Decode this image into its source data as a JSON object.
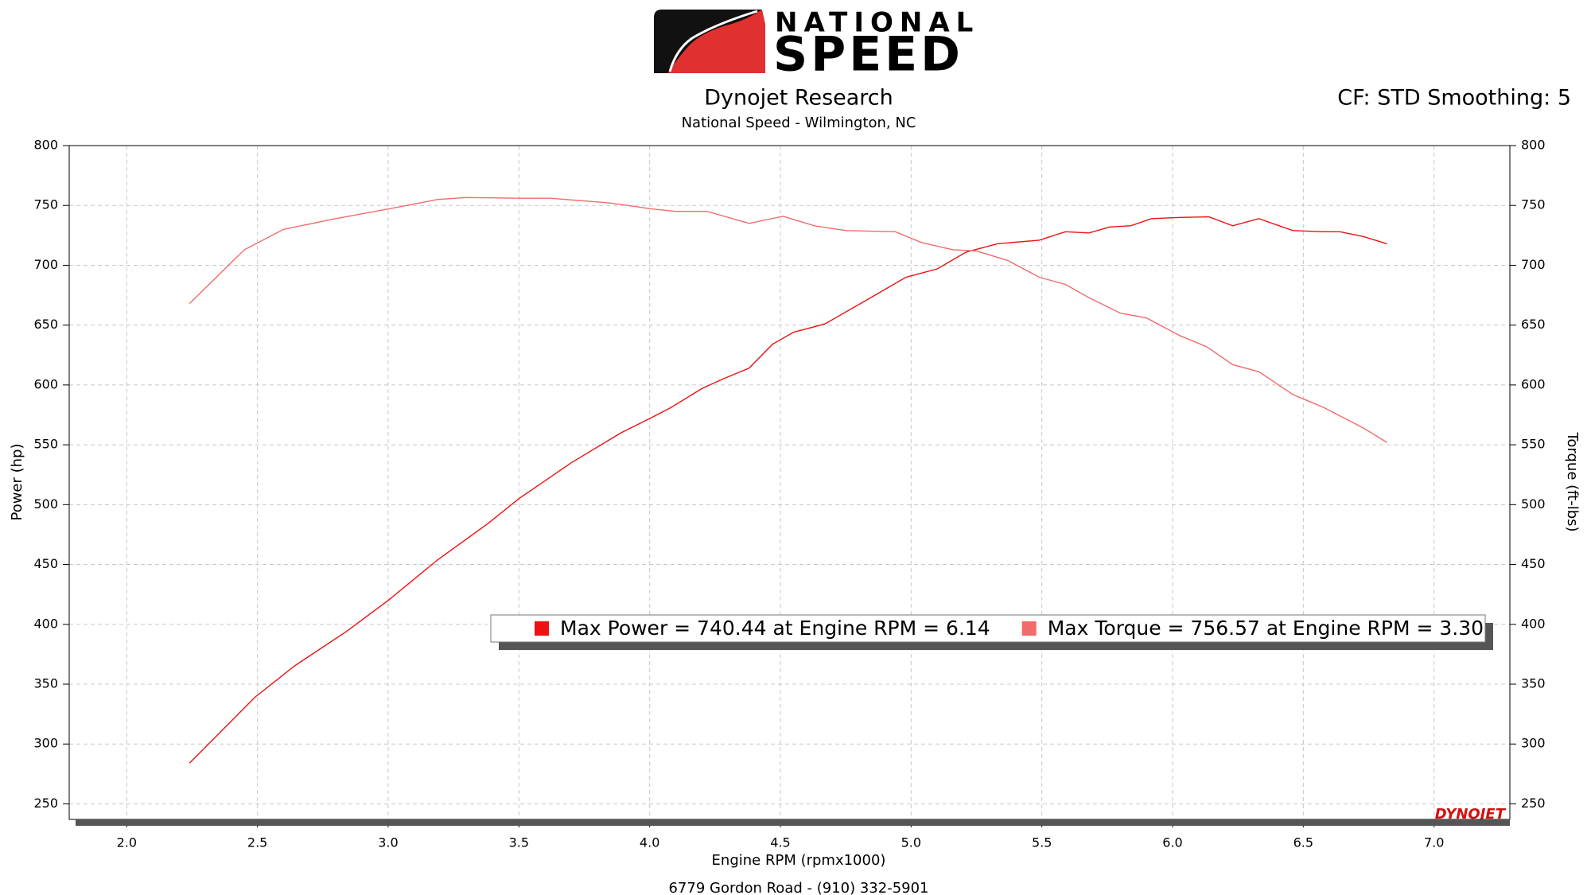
{
  "logo": {
    "top": "NATIONAL",
    "bottom": "SPEED"
  },
  "corner_note": "CF: STD Smoothing: 5",
  "footer": "6779 Gordon Road - (910) 332-5901",
  "brand": "DYNOJET",
  "chart_data": {
    "type": "line",
    "title": "Dynojet Research",
    "subtitle": "National Speed - Wilmington, NC",
    "x_label": "Engine RPM (rpmx1000)",
    "y_label": "Power (hp)",
    "y2_label": "Torque (ft-lbs)",
    "xlim": [
      1.78,
      7.29
    ],
    "ylim": [
      237,
      800
    ],
    "y2lim": [
      237,
      800
    ],
    "xticks": [
      {
        "value": 2,
        "label": "2.0"
      },
      {
        "value": 2.5,
        "label": "2.5"
      },
      {
        "value": 3,
        "label": "3.0"
      },
      {
        "value": 3.5,
        "label": "3.5"
      },
      {
        "value": 4,
        "label": "4.0"
      },
      {
        "value": 4.5,
        "label": "4.5"
      },
      {
        "value": 5,
        "label": "5.0"
      },
      {
        "value": 5.5,
        "label": "5.5"
      },
      {
        "value": 6,
        "label": "6.0"
      },
      {
        "value": 6.5,
        "label": "6.5"
      },
      {
        "value": 7,
        "label": "7.0"
      }
    ],
    "yticks": [
      250,
      300,
      350,
      400,
      450,
      500,
      550,
      600,
      650,
      700,
      750,
      800
    ],
    "y2ticks": [
      250,
      300,
      350,
      400,
      450,
      500,
      550,
      600,
      650,
      700,
      750,
      800
    ],
    "grid": true,
    "series": [
      {
        "name": "Max Power = 740.44 at Engine RPM = 6.14",
        "color": "#ee1111",
        "x": [
          2.24,
          2.49,
          2.64,
          2.84,
          3.0,
          3.19,
          3.38,
          3.5,
          3.7,
          3.89,
          4.01,
          4.08,
          4.2,
          4.28,
          4.38,
          4.47,
          4.55,
          4.67,
          4.83,
          4.98,
          5.1,
          5.21,
          5.33,
          5.49,
          5.59,
          5.68,
          5.76,
          5.84,
          5.92,
          6.03,
          6.14,
          6.23,
          6.33,
          6.46,
          6.58,
          6.64,
          6.73,
          6.82
        ],
        "values": [
          284,
          339,
          365,
          394,
          420,
          454,
          484,
          505,
          535,
          560,
          573,
          581,
          597,
          605,
          614,
          634,
          644,
          651,
          671,
          690,
          697,
          711,
          718,
          721,
          728,
          727,
          732,
          733,
          739,
          740,
          740.44,
          733,
          739,
          729,
          728,
          728,
          724,
          718
        ]
      },
      {
        "name": "Max Torque = 756.57 at Engine RPM = 3.30",
        "color": "#f26b6b",
        "axis": "y2",
        "x": [
          2.24,
          2.45,
          2.6,
          2.8,
          3.0,
          3.19,
          3.3,
          3.5,
          3.62,
          3.85,
          4.01,
          4.1,
          4.22,
          4.38,
          4.51,
          4.63,
          4.75,
          4.94,
          5.04,
          5.16,
          5.25,
          5.37,
          5.49,
          5.59,
          5.68,
          5.8,
          5.9,
          6.03,
          6.13,
          6.23,
          6.33,
          6.46,
          6.58,
          6.73,
          6.82
        ],
        "values": [
          668,
          713,
          730,
          739,
          747,
          755,
          756.57,
          756,
          756,
          752,
          747,
          745,
          745,
          735,
          741,
          733,
          729,
          728,
          719,
          713,
          712,
          704,
          690,
          684,
          673,
          660,
          656,
          641,
          632,
          617,
          611,
          592,
          581,
          564,
          552
        ]
      }
    ]
  }
}
